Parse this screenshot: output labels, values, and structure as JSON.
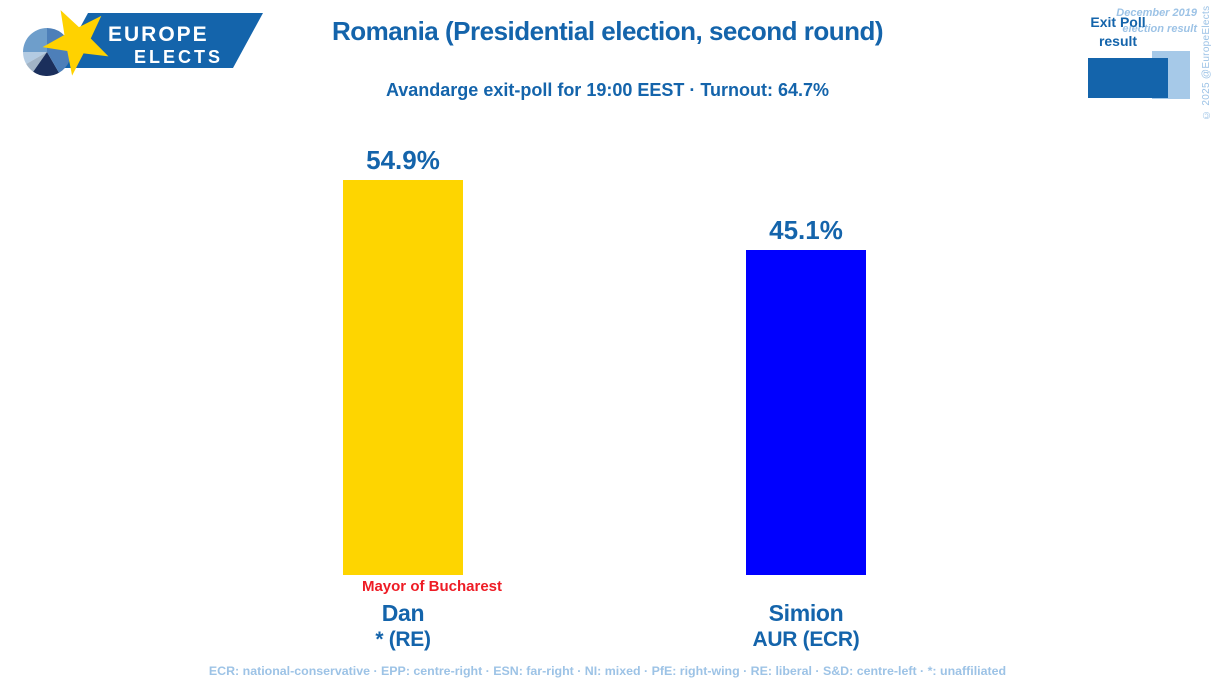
{
  "header": {
    "logo": {
      "line1": "EUROPE",
      "line2": "ELECTS"
    },
    "title": "Romania (Presidential election, second round)",
    "subtitle": "Avandarge exit-poll for 19:00 EEST · Turnout: 64.7%",
    "legend": {
      "exit_poll_label": "Exit Poll result",
      "previous_label": "December 2019 election result",
      "exit_poll_color": "#1464ab",
      "previous_color": "#a6c9e8"
    },
    "copyright": "© 2025 @EuropeElects"
  },
  "chart_data": {
    "type": "bar",
    "title": "Romania (Presidential election, second round)",
    "subtitle": "Avandarge exit-poll for 19:00 EEST · Turnout: 64.7%",
    "categories": [
      "Dan",
      "Simion"
    ],
    "series": [
      {
        "name": "Exit Poll result",
        "values": [
          54.9,
          45.1
        ]
      }
    ],
    "ylim": [
      0,
      60
    ],
    "grid": false,
    "legend_position": "top-right",
    "value_suffix": "%",
    "bars": [
      {
        "candidate": "Dan",
        "party": "* (RE)",
        "value": 54.9,
        "value_label": "54.9%",
        "color": "#fed500",
        "note": "Mayor of Bucharest",
        "note_color": "#ee1c25"
      },
      {
        "candidate": "Simion",
        "party": "AUR (ECR)",
        "value": 45.1,
        "value_label": "45.1%",
        "color": "#0000ff",
        "note": ""
      }
    ]
  },
  "footer": {
    "ideology_legend": "ECR: national-conservative · EPP: centre-right · ESN: far-right · NI: mixed · PfE: right-wing · RE: liberal · S&D: centre-left · *: unaffiliated"
  },
  "colors": {
    "accent_dark_blue": "#1464ab",
    "accent_light_blue": "#9dc3e6",
    "note_red": "#ee1c25",
    "bar_yellow": "#fed500",
    "bar_blue": "#0000ff",
    "background": "#ffffff"
  }
}
